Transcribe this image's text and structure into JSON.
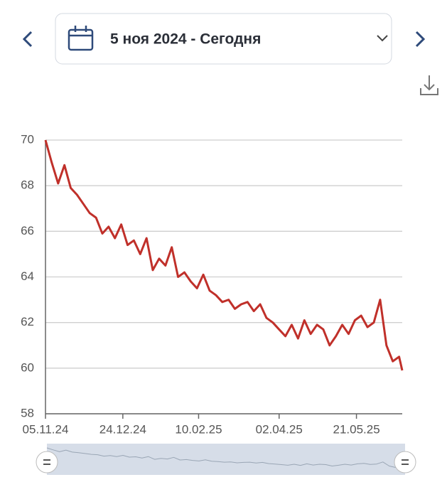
{
  "header": {
    "date_range": "5 ноя 2024 - Сегодня"
  },
  "chart_data": {
    "type": "line",
    "x": [
      "05.11.24",
      "09.11.24",
      "13.11.24",
      "17.11.24",
      "21.11.24",
      "25.11.24",
      "29.11.24",
      "03.12.24",
      "07.12.24",
      "11.12.24",
      "15.12.24",
      "19.12.24",
      "23.12.24",
      "27.12.24",
      "31.12.24",
      "04.01.25",
      "08.01.25",
      "12.01.25",
      "16.01.25",
      "20.01.25",
      "24.01.25",
      "28.01.25",
      "01.02.25",
      "05.02.25",
      "09.02.25",
      "13.02.25",
      "17.02.25",
      "21.02.25",
      "25.02.25",
      "01.03.25",
      "05.03.25",
      "09.03.25",
      "13.03.25",
      "17.03.25",
      "21.03.25",
      "25.03.25",
      "29.03.25",
      "02.04.25",
      "06.04.25",
      "10.04.25",
      "14.04.25",
      "18.04.25",
      "22.04.25",
      "26.04.25",
      "30.04.25",
      "04.05.25",
      "08.05.25",
      "12.05.25",
      "16.05.25",
      "20.05.25",
      "24.05.25",
      "28.05.25",
      "01.06.25",
      "05.06.25",
      "09.06.25",
      "13.06.25",
      "17.06.25",
      "19.06.25"
    ],
    "series": [
      {
        "color": "#c0302a",
        "values": [
          70.0,
          69.0,
          68.1,
          68.9,
          67.9,
          67.6,
          67.2,
          66.8,
          66.6,
          65.9,
          66.2,
          65.7,
          66.3,
          65.4,
          65.6,
          65.0,
          65.7,
          64.3,
          64.8,
          64.5,
          65.3,
          64.0,
          64.2,
          63.8,
          63.5,
          64.1,
          63.4,
          63.2,
          62.9,
          63.0,
          62.6,
          62.8,
          62.9,
          62.5,
          62.8,
          62.2,
          62.0,
          61.7,
          61.4,
          61.9,
          61.3,
          62.1,
          61.5,
          61.9,
          61.7,
          61.0,
          61.4,
          61.9,
          61.5,
          62.1,
          62.3,
          61.8,
          62.0,
          63.0,
          61.0,
          60.3,
          60.5,
          59.9
        ]
      }
    ],
    "xlim": [
      "05.11.24",
      "19.06.25"
    ],
    "xticks": [
      "05.11.24",
      "24.12.24",
      "10.02.25",
      "02.04.25",
      "21.05.25"
    ],
    "ylim": [
      58,
      70
    ],
    "yticks": [
      58,
      60,
      62,
      64,
      66,
      68,
      70
    ],
    "grid": true
  }
}
